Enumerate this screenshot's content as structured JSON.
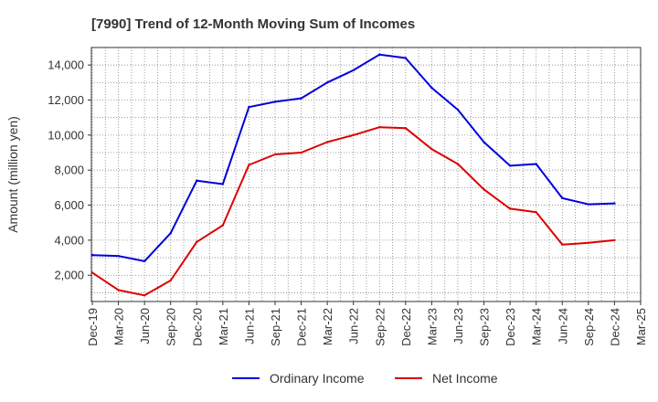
{
  "chart_data": {
    "type": "line",
    "title": "[7990]  Trend of 12-Month Moving Sum of Incomes",
    "xlabel": "",
    "ylabel": "Amount (million yen)",
    "ylim": [
      500,
      15000
    ],
    "yticks": [
      2000,
      4000,
      6000,
      8000,
      10000,
      12000,
      14000
    ],
    "ytick_labels": [
      "2,000",
      "4,000",
      "6,000",
      "8,000",
      "10,000",
      "12,000",
      "14,000"
    ],
    "categories": [
      "Dec-19",
      "Mar-20",
      "Jun-20",
      "Sep-20",
      "Dec-20",
      "Mar-21",
      "Jun-21",
      "Sep-21",
      "Dec-21",
      "Mar-22",
      "Jun-22",
      "Sep-22",
      "Dec-22",
      "Mar-23",
      "Jun-23",
      "Sep-23",
      "Dec-23",
      "Mar-24",
      "Jun-24",
      "Sep-24",
      "Dec-24",
      "Mar-25"
    ],
    "grid": true,
    "legend_position": "bottom-center",
    "series": [
      {
        "name": "Ordinary Income",
        "color": "#0000dd",
        "values": [
          3150,
          3100,
          2800,
          4400,
          7400,
          7200,
          11600,
          11900,
          12100,
          13000,
          13700,
          14600,
          14400,
          12700,
          11450,
          9600,
          8250,
          8350,
          6400,
          6050,
          6100,
          null
        ]
      },
      {
        "name": "Net Income",
        "color": "#dd0000",
        "values": [
          2150,
          1150,
          850,
          1700,
          3900,
          4850,
          8300,
          8900,
          9000,
          9600,
          10000,
          10450,
          10400,
          9200,
          8350,
          6900,
          5800,
          5600,
          3750,
          3850,
          4000,
          null
        ]
      }
    ]
  }
}
